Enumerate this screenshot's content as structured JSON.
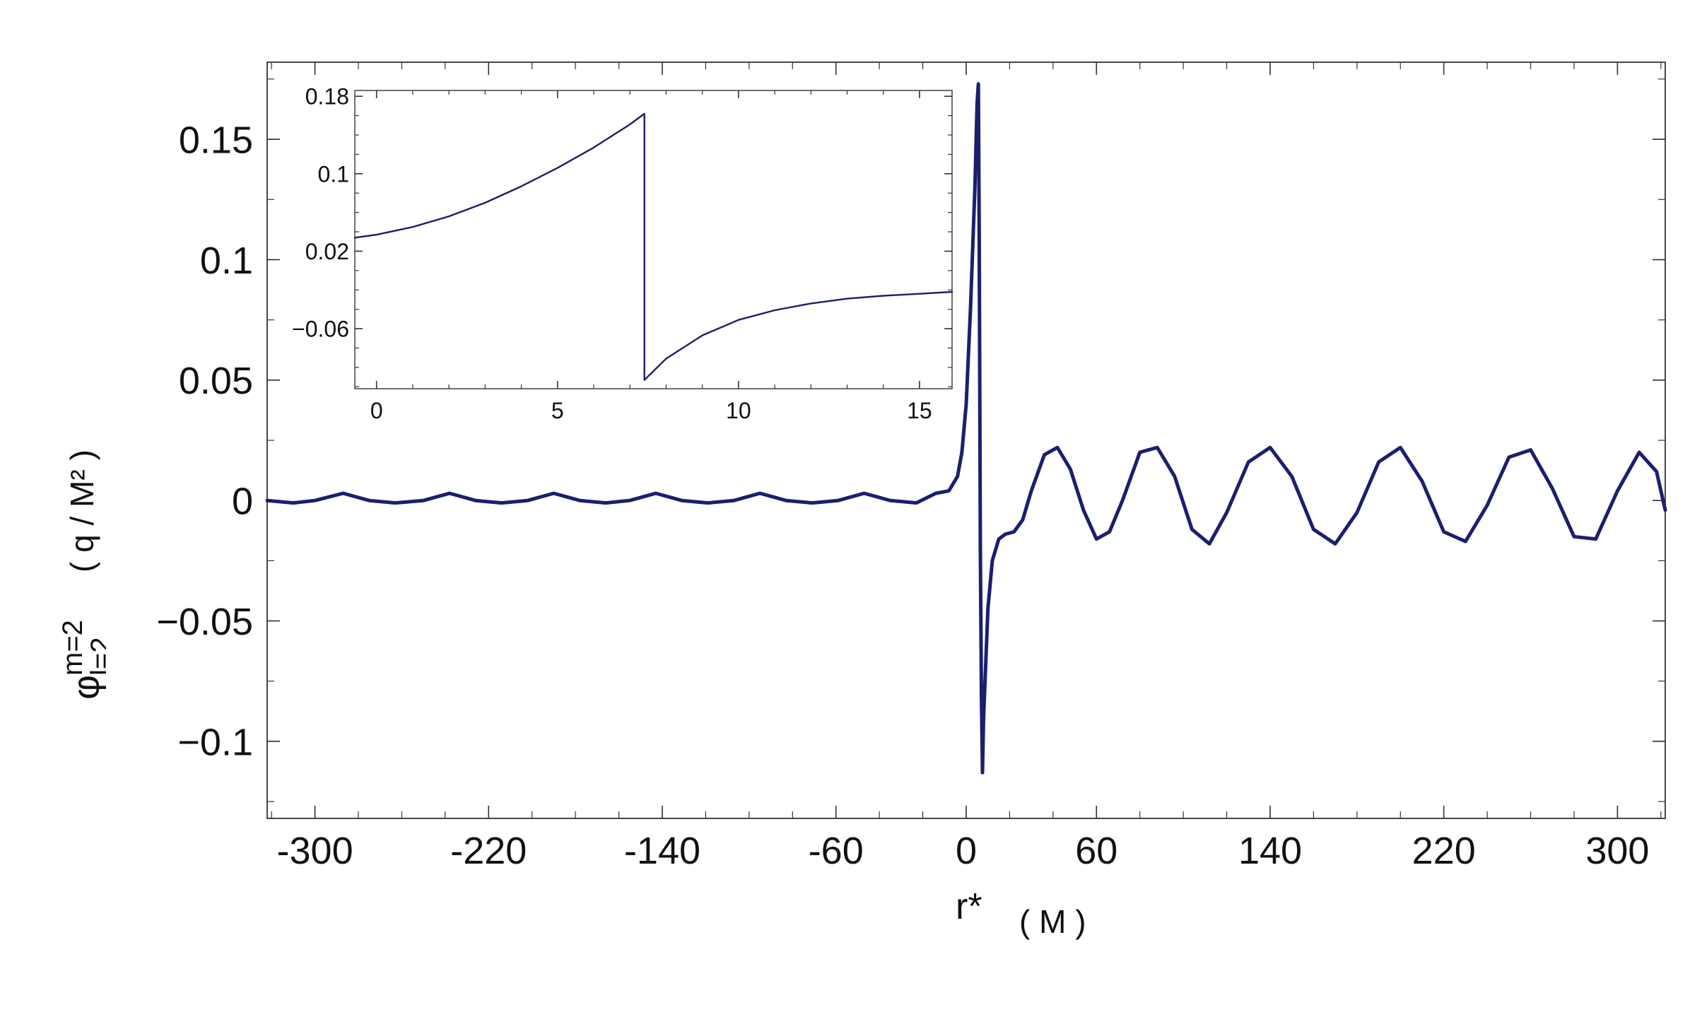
{
  "chart_data": [
    {
      "id": "main",
      "type": "line",
      "title": "",
      "xlabel": {
        "main": "r*",
        "unit": "( M )"
      },
      "ylabel": {
        "symbol": "φ",
        "sup": "m=2",
        "sub": "l=2",
        "unit": "( q / M² )"
      },
      "xlim": [
        -322,
        322
      ],
      "ylim": [
        -0.132,
        0.182
      ],
      "xticks": [
        -300,
        -220,
        -140,
        -60,
        0,
        60,
        140,
        220,
        300
      ],
      "xtick_labels": [
        "-300",
        "-220",
        "-140",
        "-60",
        "0",
        "60",
        "140",
        "220",
        "300"
      ],
      "yticks": [
        -0.1,
        -0.05,
        0,
        0.05,
        0.1,
        0.15
      ],
      "ytick_labels": [
        "−0.1",
        "−0.05",
        "0",
        "0.05",
        "0.1",
        "0.15"
      ],
      "grid": false,
      "color": "#1b1f6e",
      "series": [
        {
          "description_points": "piecewise curve sampled below",
          "x": [
            -322,
            -310,
            -300,
            -287,
            -275,
            -263,
            -250,
            -238,
            -226,
            -214,
            -202,
            -190,
            -178,
            -166,
            -155,
            -143,
            -131,
            -119,
            -107,
            -95,
            -83,
            -71,
            -59,
            -47,
            -35,
            -23,
            -14,
            -8,
            -4,
            -2,
            0,
            2,
            4,
            5,
            5.6,
            6,
            6.5,
            7,
            7.5,
            8,
            10,
            12,
            15,
            18,
            22,
            26,
            30,
            36,
            42,
            48,
            54,
            60,
            66,
            72,
            80,
            88,
            96,
            104,
            112,
            120,
            130,
            140,
            150,
            160,
            170,
            180,
            190,
            200,
            210,
            220,
            230,
            240,
            250,
            260,
            270,
            280,
            290,
            300,
            310,
            318,
            322
          ],
          "y": [
            0.0,
            -0.001,
            0.0,
            0.003,
            0.0,
            -0.001,
            0.0,
            0.003,
            0.0,
            -0.001,
            0.0,
            0.003,
            0.0,
            -0.001,
            0.0,
            0.003,
            0.0,
            -0.001,
            0.0,
            0.003,
            0.0,
            -0.001,
            0.0,
            0.003,
            0.0,
            -0.001,
            0.003,
            0.004,
            0.01,
            0.02,
            0.04,
            0.08,
            0.13,
            0.165,
            0.173,
            0.11,
            -0.02,
            -0.08,
            -0.113,
            -0.09,
            -0.045,
            -0.025,
            -0.016,
            -0.014,
            -0.013,
            -0.008,
            0.004,
            0.019,
            0.022,
            0.013,
            -0.004,
            -0.016,
            -0.013,
            0.0,
            0.02,
            0.022,
            0.01,
            -0.012,
            -0.018,
            -0.005,
            0.016,
            0.022,
            0.01,
            -0.012,
            -0.018,
            -0.005,
            0.016,
            0.022,
            0.008,
            -0.013,
            -0.017,
            -0.002,
            0.018,
            0.021,
            0.005,
            -0.015,
            -0.016,
            0.004,
            0.02,
            0.012,
            -0.004
          ]
        }
      ]
    },
    {
      "id": "inset",
      "type": "line",
      "title": "",
      "xlim": [
        -0.6,
        15.9
      ],
      "ylim": [
        -0.122,
        0.186
      ],
      "xticks": [
        0,
        5,
        10,
        15
      ],
      "xtick_labels": [
        "0",
        "5",
        "10",
        "15"
      ],
      "yticks": [
        -0.06,
        0.02,
        0.1,
        0.18
      ],
      "ytick_labels": [
        "−0.06",
        "0.02",
        "0.1",
        "0.18"
      ],
      "grid": false,
      "color": "#1b1f6e",
      "series": [
        {
          "x": [
            -0.6,
            0,
            1,
            2,
            3,
            4,
            5,
            6,
            7,
            7.4,
            7.4,
            8,
            9,
            10,
            11,
            12,
            13,
            14,
            15,
            15.9
          ],
          "y": [
            0.034,
            0.037,
            0.045,
            0.056,
            0.07,
            0.087,
            0.106,
            0.127,
            0.151,
            0.162,
            -0.113,
            -0.091,
            -0.067,
            -0.051,
            -0.041,
            -0.034,
            -0.029,
            -0.026,
            -0.024,
            -0.022
          ]
        }
      ]
    }
  ]
}
